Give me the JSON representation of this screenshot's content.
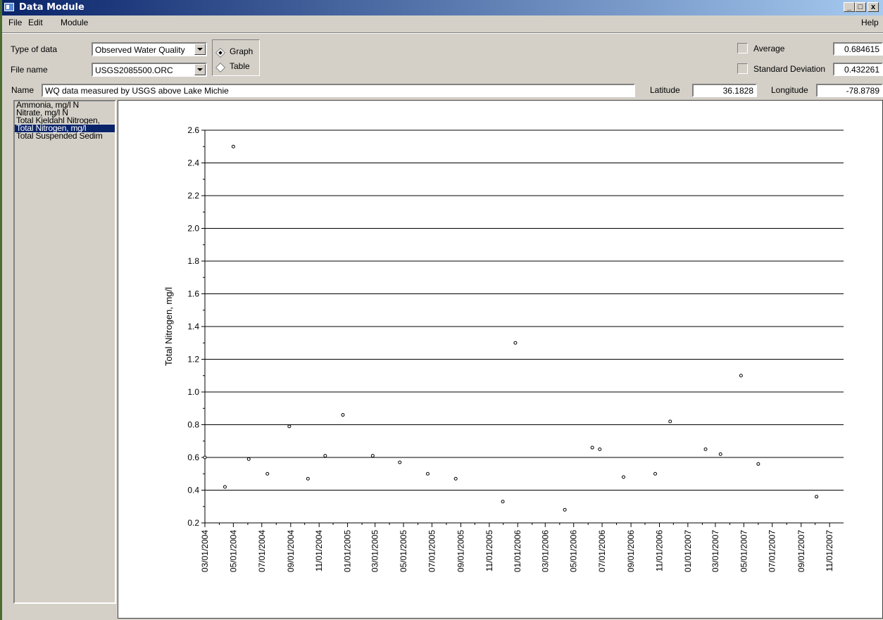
{
  "window": {
    "title": "Data Module",
    "controls": [
      "_",
      "□",
      "x"
    ]
  },
  "menu": {
    "file": "File",
    "edit": "Edit",
    "module": "Module",
    "help": "Help"
  },
  "form": {
    "type_label": "Type of data",
    "type_value": "Observed Water Quality",
    "file_label": "File name",
    "file_value": "USGS2085500.ORC",
    "view_options": {
      "graph": "Graph",
      "table": "Table",
      "selected": "Graph"
    },
    "average_label": "Average",
    "average_value": "0.684615",
    "stddev_label": "Standard Deviation",
    "stddev_value": "0.432261",
    "name_label": "Name",
    "name_value": "WQ data measured by USGS above Lake Michie",
    "latitude_label": "Latitude",
    "latitude_value": "36.1828",
    "longitude_label": "Longitude",
    "longitude_value": "-78.8789"
  },
  "parameters": {
    "items": [
      "Ammonia, mg/l N",
      "Nitrate, mg/l N",
      "Total Kjeldahl Nitrogen,",
      "Total Nitrogen, mg/l",
      "Total Suspended Sedim"
    ],
    "selected_index": 3
  },
  "chart_data": {
    "type": "scatter",
    "ylabel": "Total Nitrogen, mg/l",
    "xlabel": "",
    "ylim": [
      0.2,
      2.6
    ],
    "yticks": [
      "0.2",
      "0.4",
      "0.6",
      "0.8",
      "1.0",
      "1.2",
      "1.4",
      "1.6",
      "1.8",
      "2.0",
      "2.2",
      "2.4",
      "2.6"
    ],
    "xlim": [
      "2004-03-01",
      "2007-12-01"
    ],
    "xticks": [
      "03/01/2004",
      "05/01/2004",
      "07/01/2004",
      "09/01/2004",
      "11/01/2004",
      "01/01/2005",
      "03/01/2005",
      "05/01/2005",
      "07/01/2005",
      "09/01/2005",
      "11/01/2005",
      "01/01/2006",
      "03/01/2006",
      "05/01/2006",
      "07/01/2006",
      "09/01/2006",
      "11/01/2006",
      "01/01/2007",
      "03/01/2007",
      "05/01/2007",
      "07/01/2007",
      "09/01/2007",
      "11/01/2007"
    ],
    "grid": "horizontal",
    "points": [
      {
        "x": "2004-03-01",
        "y": 0.6
      },
      {
        "x": "2004-04-13",
        "y": 0.42
      },
      {
        "x": "2004-05-01",
        "y": 2.5
      },
      {
        "x": "2004-06-03",
        "y": 0.59
      },
      {
        "x": "2004-07-13",
        "y": 0.5
      },
      {
        "x": "2004-08-29",
        "y": 0.79
      },
      {
        "x": "2004-10-08",
        "y": 0.47
      },
      {
        "x": "2004-11-14",
        "y": 0.61
      },
      {
        "x": "2004-12-22",
        "y": 0.86
      },
      {
        "x": "2005-02-24",
        "y": 0.61
      },
      {
        "x": "2005-04-23",
        "y": 0.57
      },
      {
        "x": "2005-06-22",
        "y": 0.5
      },
      {
        "x": "2005-08-21",
        "y": 0.47
      },
      {
        "x": "2005-11-30",
        "y": 0.33
      },
      {
        "x": "2005-12-27",
        "y": 1.3
      },
      {
        "x": "2006-04-12",
        "y": 0.28
      },
      {
        "x": "2006-06-10",
        "y": 0.66
      },
      {
        "x": "2006-06-26",
        "y": 0.65
      },
      {
        "x": "2006-08-16",
        "y": 0.48
      },
      {
        "x": "2006-10-23",
        "y": 0.5
      },
      {
        "x": "2006-11-24",
        "y": 0.82
      },
      {
        "x": "2007-02-08",
        "y": 0.65
      },
      {
        "x": "2007-03-12",
        "y": 0.62
      },
      {
        "x": "2007-04-25",
        "y": 1.1
      },
      {
        "x": "2007-06-01",
        "y": 0.56
      },
      {
        "x": "2007-10-04",
        "y": 0.36
      }
    ]
  }
}
